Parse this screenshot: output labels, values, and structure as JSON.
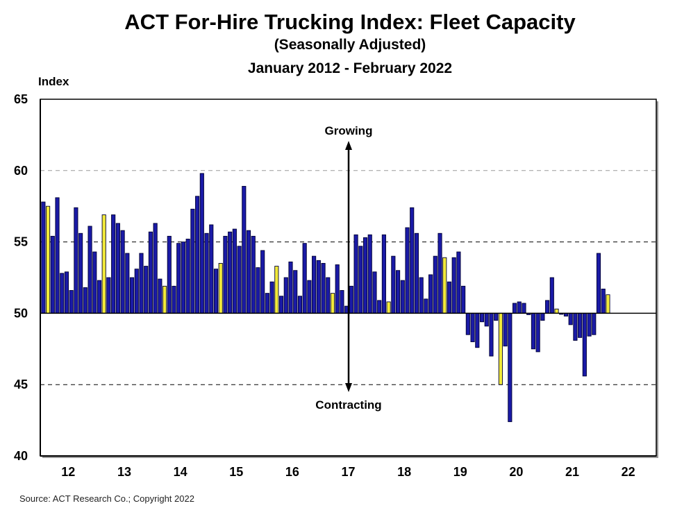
{
  "chart_data": {
    "type": "bar",
    "title": "ACT For-Hire Trucking Index: Fleet Capacity",
    "subtitle": "(Seasonally Adjusted)",
    "period": "January 2012 - February 2022",
    "ylabel": "Index",
    "xlabel": "",
    "ylim": [
      40,
      65
    ],
    "baseline": 50,
    "yticks": [
      40,
      45,
      50,
      55,
      60,
      65
    ],
    "gridlines": [
      45,
      55,
      60
    ],
    "grid": true,
    "xtick_labels": [
      "12",
      "13",
      "14",
      "15",
      "16",
      "17",
      "18",
      "19",
      "20",
      "21",
      "22"
    ],
    "start": "2012-01",
    "end": "2022-02",
    "colors": {
      "default": "#1a1aa6",
      "highlight": "#f2ea3a",
      "edge": "#000033"
    },
    "annotations": {
      "up": "Growing",
      "down": "Contracting"
    },
    "values": [
      57.8,
      57.5,
      55.4,
      58.1,
      52.8,
      52.9,
      51.6,
      57.4,
      55.6,
      51.8,
      56.1,
      54.3,
      52.3,
      56.9,
      52.5,
      56.9,
      56.3,
      55.8,
      54.2,
      52.5,
      53.1,
      54.2,
      53.3,
      55.7,
      56.3,
      52.4,
      51.9,
      55.4,
      51.9,
      54.9,
      55.0,
      55.2,
      57.3,
      58.2,
      59.8,
      55.6,
      56.2,
      53.1,
      53.5,
      55.4,
      55.7,
      55.9,
      54.7,
      58.9,
      55.8,
      55.4,
      53.2,
      54.4,
      51.4,
      52.2,
      53.3,
      51.2,
      52.5,
      53.6,
      53.0,
      51.2,
      54.9,
      52.3,
      54.0,
      53.7,
      53.5,
      52.5,
      51.4,
      53.4,
      51.6,
      50.5,
      51.9,
      55.5,
      54.7,
      55.3,
      55.5,
      52.9,
      50.9,
      55.5,
      50.8,
      54.0,
      53.0,
      52.3,
      56.0,
      57.4,
      55.6,
      52.5,
      51.0,
      52.7,
      54.0,
      55.6,
      53.9,
      52.2,
      53.9,
      54.3,
      51.9,
      48.5,
      48.0,
      47.6,
      49.4,
      49.1,
      47.0,
      49.5,
      45.0,
      47.7,
      42.4,
      50.7,
      50.8,
      50.7,
      49.9,
      47.5,
      47.3,
      49.5,
      50.9,
      52.5,
      50.3,
      50.0,
      49.8,
      49.2,
      48.1,
      48.3,
      45.6,
      48.4,
      48.5,
      54.2,
      51.7,
      51.3
    ],
    "highlighted_indices": [
      1,
      13,
      26,
      38,
      50,
      62,
      74,
      86,
      98,
      110,
      121
    ]
  },
  "source": "Source: ACT Research Co.; Copyright 2022"
}
